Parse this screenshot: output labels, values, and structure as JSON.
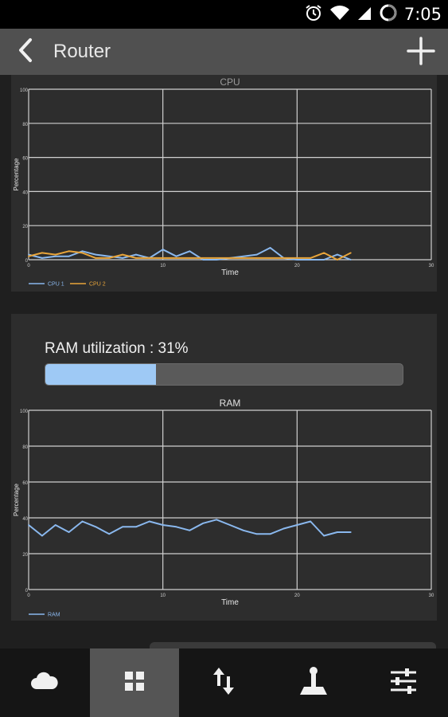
{
  "status_bar": {
    "time": "7:05",
    "icons": [
      "alarm-icon",
      "wifi-icon",
      "cell-signal-icon",
      "sync-icon"
    ]
  },
  "action_bar": {
    "title": "Router",
    "back_icon": "chevron-left-icon",
    "add_icon": "plus-icon"
  },
  "ram": {
    "label": "RAM utilization : 31%",
    "percent": 31
  },
  "colors": {
    "cpu1": "#8ab8ee",
    "cpu2": "#e9a53a",
    "ram": "#8ab8ee",
    "bar_fill": "#9ec9f5",
    "active_tab": "#555555"
  },
  "bottom_nav": [
    {
      "icon": "cloud-icon",
      "active": false
    },
    {
      "icon": "grid-icon",
      "active": true
    },
    {
      "icon": "transfer-arrows-icon",
      "active": false
    },
    {
      "icon": "joystick-icon",
      "active": false
    },
    {
      "icon": "sliders-icon",
      "active": false
    }
  ],
  "chart_data": [
    {
      "type": "line",
      "title": "CPU",
      "xlabel": "Time",
      "ylabel": "Percentage",
      "xlim": [
        0,
        30
      ],
      "ylim": [
        0,
        100
      ],
      "x_ticks": [
        "0",
        "10",
        "20",
        "30"
      ],
      "y_ticks": [
        "0",
        "20",
        "40",
        "60",
        "80",
        "100"
      ],
      "grid": true,
      "legend": "bottom-left",
      "x": [
        0,
        1,
        2,
        3,
        4,
        5,
        6,
        7,
        8,
        9,
        10,
        11,
        12,
        13,
        14,
        15,
        16,
        17,
        18,
        19,
        20,
        21,
        22,
        23,
        24
      ],
      "series": [
        {
          "name": "CPU 1",
          "color": "#8ab8ee",
          "values": [
            3,
            1,
            2,
            2,
            5,
            3,
            2,
            1,
            3,
            1,
            6,
            2,
            5,
            0,
            0,
            1,
            2,
            3,
            7,
            1,
            0,
            0,
            0,
            3,
            0
          ]
        },
        {
          "name": "CPU 2",
          "color": "#e9a53a",
          "values": [
            2,
            4,
            3,
            5,
            4,
            1,
            1,
            3,
            1,
            1,
            1,
            1,
            1,
            1,
            1,
            1,
            1,
            1,
            1,
            1,
            1,
            1,
            4,
            0,
            4
          ]
        }
      ]
    },
    {
      "type": "line",
      "title": "RAM",
      "xlabel": "Time",
      "ylabel": "Percentage",
      "xlim": [
        0,
        30
      ],
      "ylim": [
        0,
        100
      ],
      "x_ticks": [
        "0",
        "10",
        "20",
        "30"
      ],
      "y_ticks": [
        "0",
        "20",
        "40",
        "60",
        "80",
        "100"
      ],
      "grid": true,
      "legend": "bottom-left",
      "x": [
        0,
        1,
        2,
        3,
        4,
        5,
        6,
        7,
        8,
        9,
        10,
        11,
        12,
        13,
        14,
        15,
        16,
        17,
        18,
        19,
        20,
        21,
        22,
        23,
        24
      ],
      "series": [
        {
          "name": "RAM",
          "color": "#8ab8ee",
          "values": [
            36,
            30,
            36,
            32,
            38,
            35,
            31,
            35,
            35,
            38,
            36,
            35,
            33,
            37,
            39,
            36,
            33,
            31,
            31,
            34,
            36,
            38,
            30,
            32,
            32
          ]
        }
      ]
    }
  ]
}
